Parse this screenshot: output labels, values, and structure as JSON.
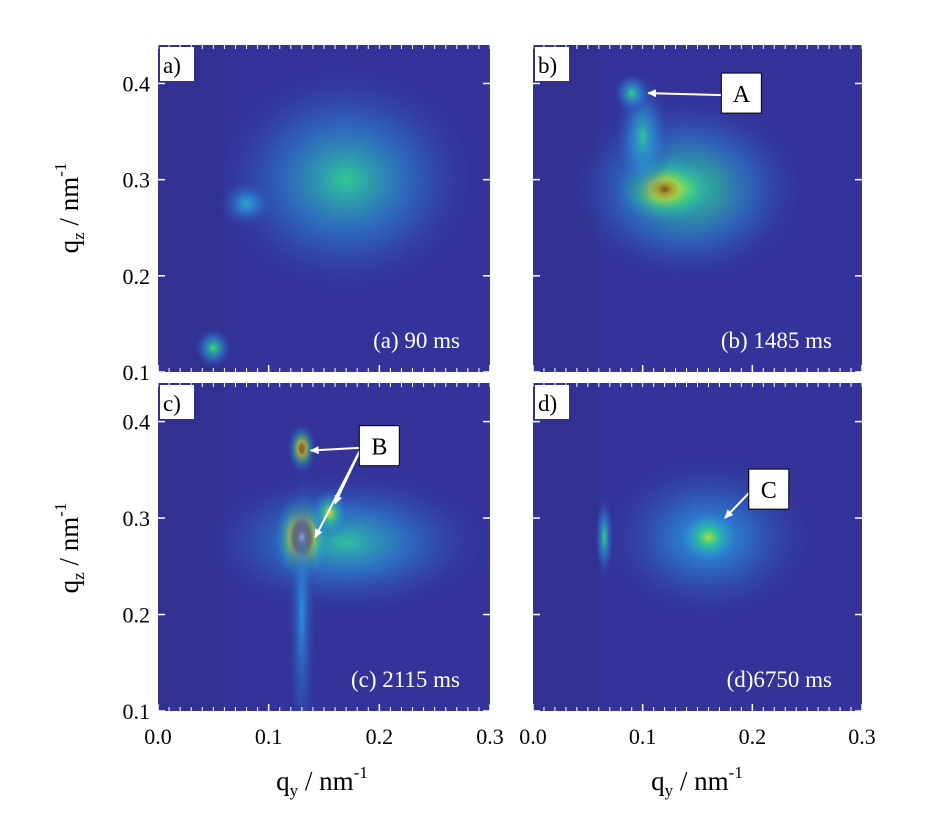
{
  "chart_data": {
    "type": "heatmap",
    "colormap": [
      "#333399",
      "#2a8fe0",
      "#2fd08a",
      "#d8e02a",
      "#7a3a1e",
      "#f6f0ea"
    ],
    "panels": [
      {
        "id": "a",
        "letter": "a)",
        "time_label": "(a) 90 ms",
        "xlim": [
          0.0,
          0.3
        ],
        "ylim": [
          0.1,
          0.44
        ],
        "y_ticks": [
          "0.1",
          "0.2",
          "0.3",
          "0.4"
        ],
        "blobs": [
          {
            "x": 0.17,
            "y": 0.3,
            "sx": 0.055,
            "sy": 0.055,
            "level": 0.38
          },
          {
            "x": 0.08,
            "y": 0.275,
            "sx": 0.012,
            "sy": 0.012,
            "level": 0.28
          },
          {
            "x": 0.05,
            "y": 0.125,
            "sx": 0.008,
            "sy": 0.01,
            "level": 0.45
          }
        ],
        "annotations": []
      },
      {
        "id": "b",
        "letter": "b)",
        "time_label": "(b)  1485 ms",
        "xlim": [
          0.0,
          0.3
        ],
        "ylim": [
          0.1,
          0.44
        ],
        "y_ticks": [],
        "blobs": [
          {
            "x": 0.14,
            "y": 0.29,
            "sx": 0.05,
            "sy": 0.045,
            "level": 0.45
          },
          {
            "x": 0.12,
            "y": 0.29,
            "sx": 0.022,
            "sy": 0.018,
            "level": 0.78
          },
          {
            "x": 0.1,
            "y": 0.345,
            "sx": 0.012,
            "sy": 0.03,
            "level": 0.35
          },
          {
            "x": 0.09,
            "y": 0.39,
            "sx": 0.008,
            "sy": 0.01,
            "level": 0.4
          }
        ],
        "annotations": [
          {
            "label": "A",
            "text_x": 0.19,
            "text_y": 0.39,
            "targets": [
              [
                0.105,
                0.39
              ]
            ]
          }
        ]
      },
      {
        "id": "c",
        "letter": "c)",
        "time_label": "(c) 2115 ms",
        "xlim": [
          0.0,
          0.3
        ],
        "ylim": [
          0.1,
          0.44
        ],
        "y_ticks": [
          "0.1",
          "0.2",
          "0.3",
          "0.4"
        ],
        "blobs": [
          {
            "x": 0.17,
            "y": 0.275,
            "sx": 0.06,
            "sy": 0.035,
            "level": 0.35
          },
          {
            "x": 0.13,
            "y": 0.28,
            "sx": 0.012,
            "sy": 0.022,
            "level": 1.0
          },
          {
            "x": 0.13,
            "y": 0.372,
            "sx": 0.006,
            "sy": 0.012,
            "level": 0.85
          },
          {
            "x": 0.155,
            "y": 0.305,
            "sx": 0.008,
            "sy": 0.012,
            "level": 0.6
          },
          {
            "x": 0.13,
            "y": 0.2,
            "sx": 0.006,
            "sy": 0.08,
            "level": 0.2
          }
        ],
        "annotations": [
          {
            "label": "B",
            "text_x": 0.2,
            "text_y": 0.375,
            "targets": [
              [
                0.138,
                0.37
              ],
              [
                0.16,
                0.315
              ],
              [
                0.142,
                0.28
              ]
            ]
          }
        ]
      },
      {
        "id": "d",
        "letter": "d)",
        "time_label": "(d)6750 ms",
        "xlim": [
          0.0,
          0.3
        ],
        "ylim": [
          0.1,
          0.44
        ],
        "y_ticks": [],
        "blobs": [
          {
            "x": 0.16,
            "y": 0.28,
            "sx": 0.045,
            "sy": 0.04,
            "level": 0.28
          },
          {
            "x": 0.16,
            "y": 0.28,
            "sx": 0.014,
            "sy": 0.014,
            "level": 0.55
          },
          {
            "x": 0.065,
            "y": 0.28,
            "sx": 0.004,
            "sy": 0.02,
            "level": 0.4
          }
        ],
        "annotations": [
          {
            "label": "C",
            "text_x": 0.215,
            "text_y": 0.33,
            "targets": [
              [
                0.175,
                0.3
              ]
            ]
          }
        ]
      }
    ],
    "x_ticks": [
      "0.0",
      "0.1",
      "0.2",
      "0.3"
    ],
    "x_tick_values": [
      0.0,
      0.1,
      0.2,
      0.3
    ],
    "y_tick_values": [
      0.1,
      0.2,
      0.3,
      0.4
    ],
    "xlabel": {
      "main": "q",
      "sub": "y",
      "unit": " / nm",
      "sup": "-1"
    },
    "ylabel": {
      "main": "q",
      "sub": "z",
      "unit": " / nm",
      "sup": "-1"
    }
  }
}
